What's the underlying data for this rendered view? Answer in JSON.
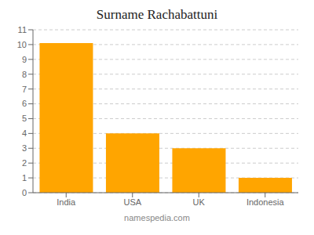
{
  "chart_data": {
    "type": "bar",
    "title": "Surname Rachabattuni",
    "categories": [
      "India",
      "USA",
      "UK",
      "Indonesia"
    ],
    "values": [
      10.1,
      4.0,
      3.0,
      1.0
    ],
    "color": "#FFA500",
    "ylim": [
      0,
      11
    ],
    "yticks": [
      0,
      1,
      2,
      3,
      4,
      5,
      6,
      7,
      8,
      9,
      10,
      11
    ],
    "grid": true,
    "annotations": [
      "namespedia.com"
    ]
  }
}
